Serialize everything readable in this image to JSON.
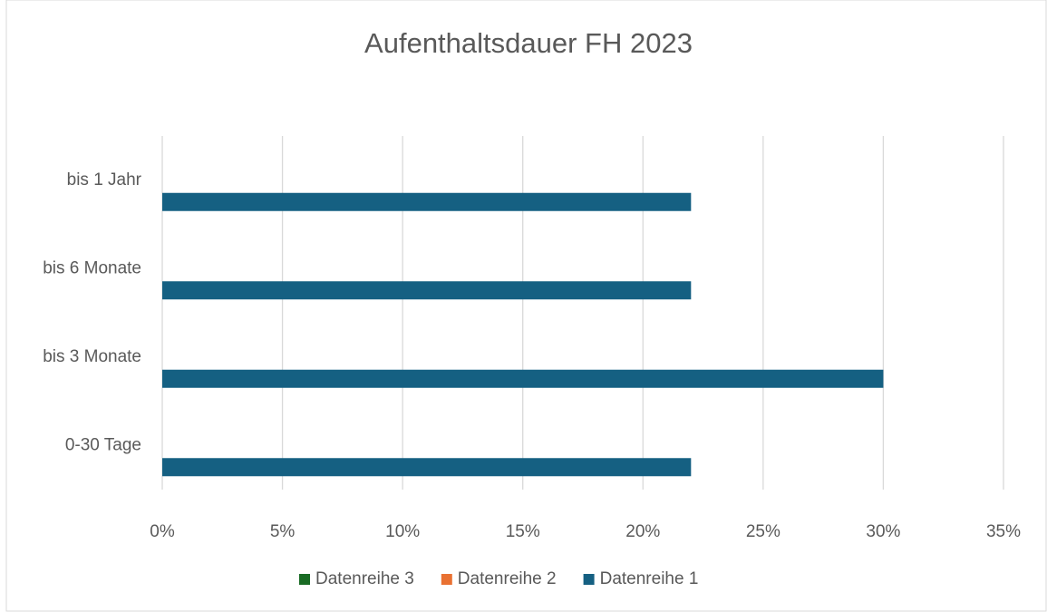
{
  "chart_data": {
    "type": "hbar",
    "title": "Aufenthaltsdauer FH 2023",
    "categories": [
      "0-30 Tage",
      "bis 3 Monate",
      "bis 6 Monate",
      "bis 1 Jahr"
    ],
    "series": [
      {
        "name": "Datenreihe 1",
        "color": "#156082",
        "values": [
          22,
          30,
          22,
          22
        ]
      },
      {
        "name": "Datenreihe 2",
        "color": "#e97132",
        "values": [
          null,
          null,
          null,
          null
        ]
      },
      {
        "name": "Datenreihe 3",
        "color": "#196b24",
        "values": [
          null,
          null,
          null,
          null
        ]
      }
    ],
    "xlim": [
      0,
      35
    ],
    "xticks": [
      {
        "value": 0,
        "label": "0%"
      },
      {
        "value": 5,
        "label": "5%"
      },
      {
        "value": 10,
        "label": "10%"
      },
      {
        "value": 15,
        "label": "15%"
      },
      {
        "value": 20,
        "label": "20%"
      },
      {
        "value": 25,
        "label": "25%"
      },
      {
        "value": 30,
        "label": "30%"
      },
      {
        "value": 35,
        "label": "35%"
      }
    ],
    "grid": true,
    "legend": "bottom"
  }
}
